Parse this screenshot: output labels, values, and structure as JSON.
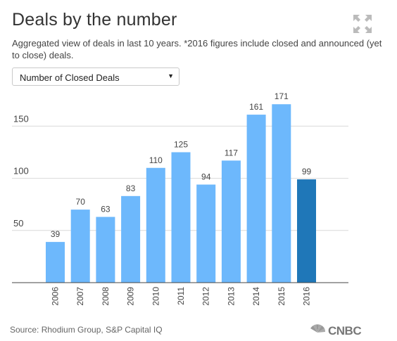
{
  "header": {
    "title": "Deals by the number",
    "subtitle": "Aggregated view of deals in last 10 years. *2016 figures include closed and announced (yet to close) deals."
  },
  "metric_select": {
    "selected": "Number of Closed Deals"
  },
  "footer": {
    "source": "Source: Rhodium Group, S&P Capital IQ",
    "logo_text": "CNBC"
  },
  "colors": {
    "bar": "#6db8fc",
    "highlight_bar": "#1f77b8",
    "grid": "#d9d9d9",
    "axis": "#444444"
  },
  "chart_data": {
    "type": "bar",
    "categories": [
      "2006",
      "2007",
      "2008",
      "2009",
      "2010",
      "2011",
      "2012",
      "2013",
      "2014",
      "2015",
      "2016"
    ],
    "values": [
      39,
      70,
      63,
      83,
      110,
      125,
      94,
      117,
      161,
      171,
      99
    ],
    "highlighted": [
      "2016"
    ],
    "yticks": [
      50,
      100,
      150
    ],
    "ylim": [
      0,
      180
    ],
    "grid": true,
    "data_labels": true
  }
}
